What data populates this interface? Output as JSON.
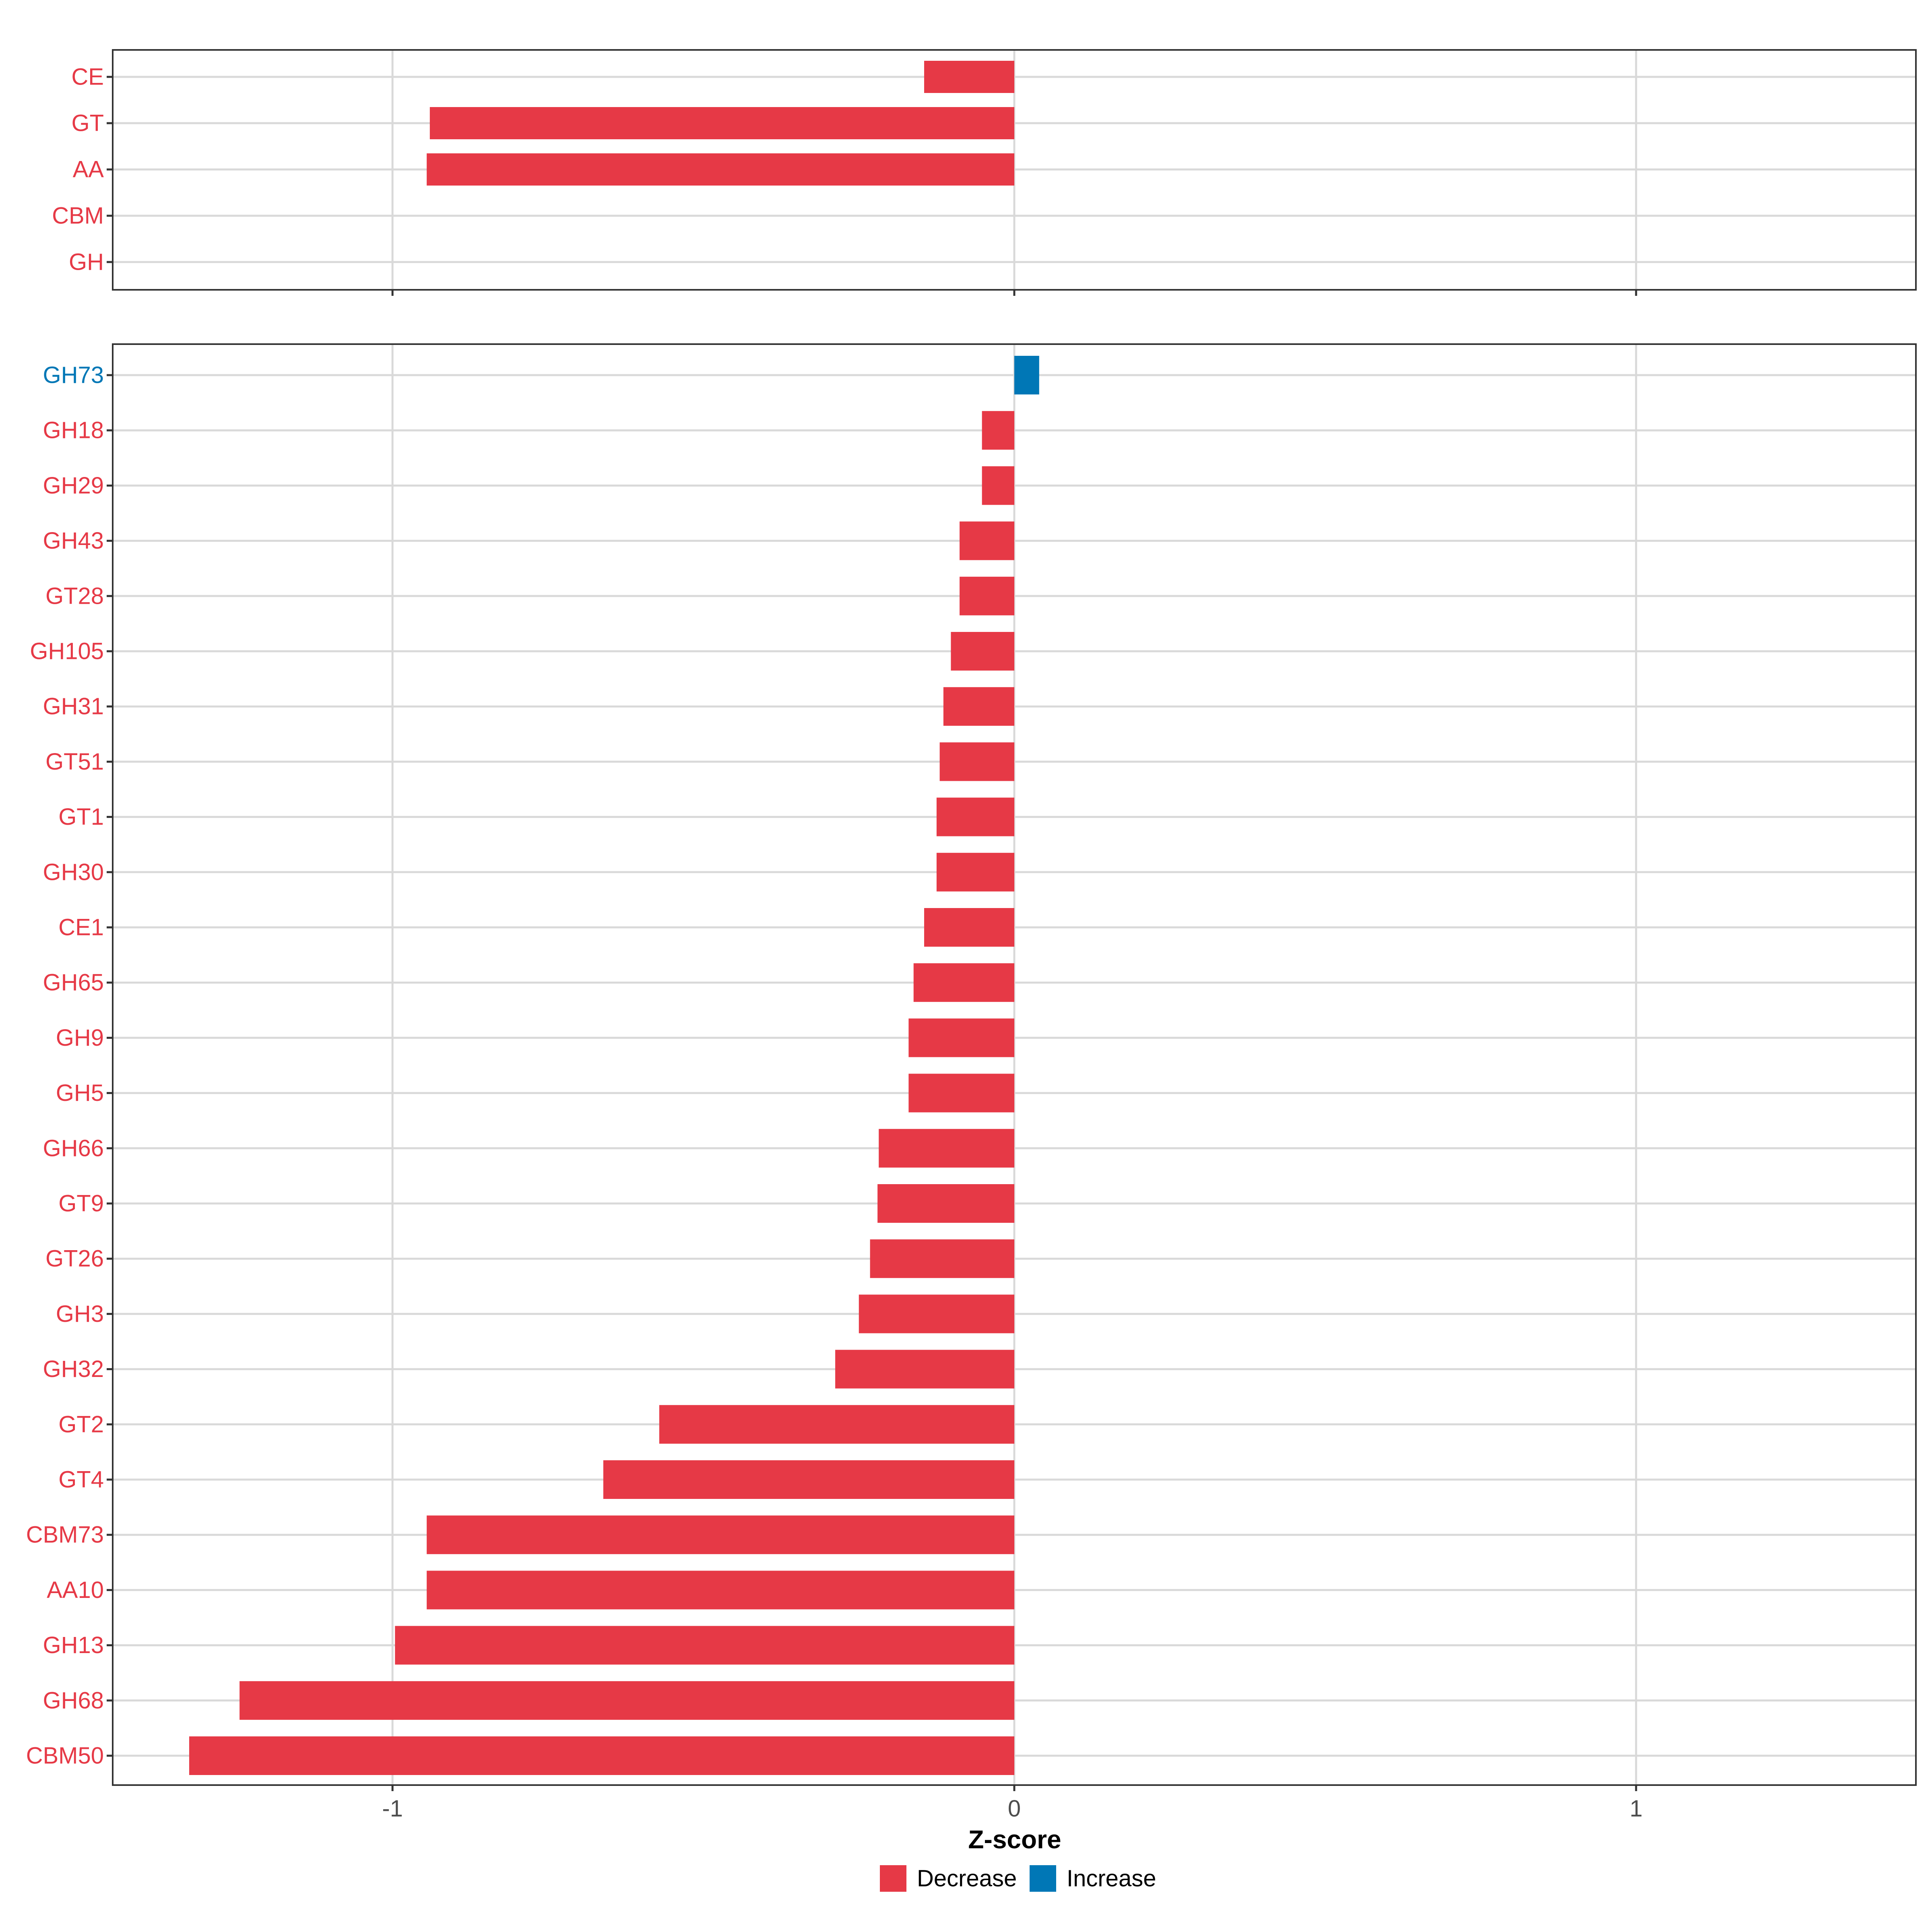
{
  "colors": {
    "decrease": "#E63946",
    "increase": "#0077B6",
    "grid": "#D9D9D9",
    "frame": "#333333",
    "tick_text": "#4D4D4D"
  },
  "x_axis": {
    "label": "Z-score",
    "xlim": [
      -1.45,
      1.45
    ],
    "ticks": [
      -1,
      0,
      1
    ],
    "tick_labels": [
      "-1",
      "0",
      "1"
    ]
  },
  "legend": {
    "position": "bottom",
    "items": [
      {
        "key": "decrease",
        "label": "Decrease"
      },
      {
        "key": "increase",
        "label": "Increase"
      }
    ]
  },
  "chart_data": [
    {
      "type": "bar",
      "orientation": "horizontal",
      "categories": [
        "CE",
        "GT",
        "AA",
        "CBM",
        "GH"
      ],
      "values": [
        -0.145,
        -0.94,
        -0.945,
        0,
        0
      ],
      "directions": [
        "decrease",
        "decrease",
        "decrease",
        "decrease",
        "decrease"
      ],
      "xlim": [
        -1.45,
        1.45
      ],
      "grid": true
    },
    {
      "type": "bar",
      "orientation": "horizontal",
      "categories": [
        "GH73",
        "GH18",
        "GH29",
        "GH43",
        "GT28",
        "GH105",
        "GH31",
        "GT51",
        "GT1",
        "GH30",
        "CE1",
        "GH65",
        "GH9",
        "GH5",
        "GH66",
        "GT9",
        "GT26",
        "GH3",
        "GH32",
        "GT2",
        "GT4",
        "CBM73",
        "AA10",
        "GH13",
        "GH68",
        "CBM50"
      ],
      "values": [
        0.04,
        -0.052,
        -0.052,
        -0.088,
        -0.088,
        -0.102,
        -0.114,
        -0.12,
        -0.125,
        -0.125,
        -0.145,
        -0.162,
        -0.17,
        -0.17,
        -0.218,
        -0.22,
        -0.232,
        -0.25,
        -0.288,
        -0.571,
        -0.661,
        -0.945,
        -0.945,
        -0.996,
        -1.246,
        -1.327
      ],
      "directions": [
        "increase",
        "decrease",
        "decrease",
        "decrease",
        "decrease",
        "decrease",
        "decrease",
        "decrease",
        "decrease",
        "decrease",
        "decrease",
        "decrease",
        "decrease",
        "decrease",
        "decrease",
        "decrease",
        "decrease",
        "decrease",
        "decrease",
        "decrease",
        "decrease",
        "decrease",
        "decrease",
        "decrease",
        "decrease",
        "decrease"
      ],
      "xlabel": "Z-score",
      "xlim": [
        -1.45,
        1.45
      ],
      "grid": true
    }
  ]
}
